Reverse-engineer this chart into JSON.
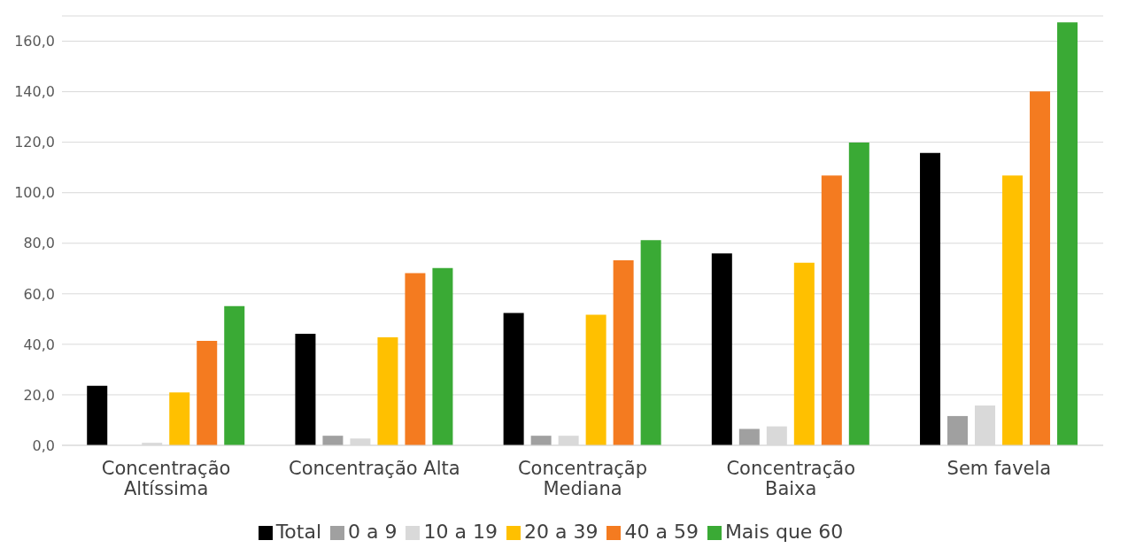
{
  "chart_data": {
    "type": "bar",
    "categories": [
      "Concentração Altíssima",
      "Concentração Alta",
      "Concentraçãp Mediana",
      "Concentração Baixa",
      "Sem favela"
    ],
    "series": [
      {
        "name": "Total",
        "color": "#000000",
        "values": [
          23.6,
          44.2,
          52.4,
          76.0,
          115.8
        ]
      },
      {
        "name": "0 a 9",
        "color": "#a0a0a0",
        "values": [
          0,
          3.8,
          3.8,
          6.5,
          11.6
        ]
      },
      {
        "name": "10 a 19",
        "color": "#d9d9d9",
        "values": [
          1.0,
          2.7,
          3.8,
          7.5,
          15.8
        ]
      },
      {
        "name": "20 a 39",
        "color": "#ffc000",
        "values": [
          20.9,
          42.8,
          51.7,
          72.3,
          106.8
        ]
      },
      {
        "name": "40 a 59",
        "color": "#f47b20",
        "values": [
          41.4,
          68.2,
          73.3,
          106.8,
          140.1
        ]
      },
      {
        "name": "Mais que 60",
        "color": "#3aaa35",
        "values": [
          55.1,
          70.2,
          81.2,
          119.9,
          167.5
        ]
      }
    ],
    "ylim": [
      0,
      170
    ],
    "yticks": [
      {
        "value": 0,
        "label": "0,0"
      },
      {
        "value": 20,
        "label": "20,0"
      },
      {
        "value": 40,
        "label": "40,0"
      },
      {
        "value": 60,
        "label": "60,0"
      },
      {
        "value": 80,
        "label": "80,0"
      },
      {
        "value": 100,
        "label": "100,0"
      },
      {
        "value": 120,
        "label": "120,0"
      },
      {
        "value": 140,
        "label": "140,0"
      },
      {
        "value": 160,
        "label": "160,0"
      }
    ],
    "grid": "y",
    "legend": "bottom"
  }
}
